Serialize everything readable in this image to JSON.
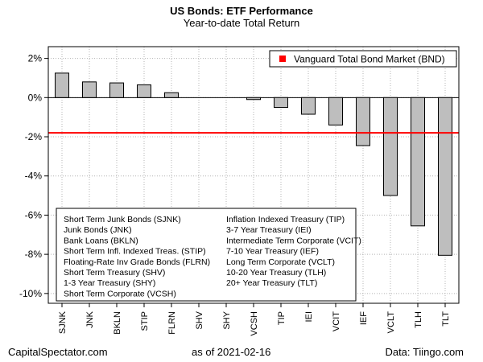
{
  "header": {
    "title": "US Bonds: ETF Performance",
    "subtitle": "Year-to-date Total Return"
  },
  "footer": {
    "left": "CapitalSpectator.com",
    "middle": "as of   2021-02-16",
    "right": "Data: Tiingo.com"
  },
  "chart_data": {
    "type": "bar",
    "title": "US Bonds: ETF Performance",
    "subtitle": "Year-to-date Total Return",
    "categories": [
      "SJNK",
      "JNK",
      "BKLN",
      "STIP",
      "FLRN",
      "SHV",
      "SHY",
      "VCSH",
      "TIP",
      "IEI",
      "VCIT",
      "IEF",
      "VCLT",
      "TLH",
      "TLT"
    ],
    "values": [
      1.25,
      0.8,
      0.75,
      0.65,
      0.25,
      0.0,
      0.0,
      -0.1,
      -0.5,
      -0.85,
      -1.4,
      -2.45,
      -5.0,
      -6.55,
      -8.05
    ],
    "yticks": [
      2,
      0,
      -2,
      -4,
      -6,
      -8,
      -10
    ],
    "ytick_labels": [
      "2%",
      "0%",
      "-2%",
      "-4%",
      "-6%",
      "-8%",
      "-10%"
    ],
    "ylim": [
      -10.5,
      2.6
    ],
    "bar_color": "#bebebe",
    "grid": true,
    "benchmark": {
      "label": "Vanguard Total Bond Market (BND)",
      "value": -1.8,
      "color": "#ff0000"
    },
    "legend_position": "top-right",
    "key_position": "bottom-left",
    "key_left": [
      "Short Term Junk Bonds (SJNK)",
      "Junk Bonds (JNK)",
      "Bank Loans (BKLN)",
      "Short Term Infl. Indexed Treas. (STIP)",
      "Floating-Rate Inv Grade Bonds (FLRN)",
      "Short Term Treasury (SHV)",
      "1-3 Year Treasury (SHY)",
      "Short Term Corporate (VCSH)"
    ],
    "key_right": [
      "Inflation Indexed Treasury (TIP)",
      "3-7 Year Treasury (IEI)",
      "Intermediate Term Corporate (VCIT)",
      "7-10 Year Treasury (IEF)",
      "Long Term Corporate (VCLT)",
      "10-20 Year Treasury (TLH)",
      "20+ Year Treasury (TLT)"
    ]
  }
}
